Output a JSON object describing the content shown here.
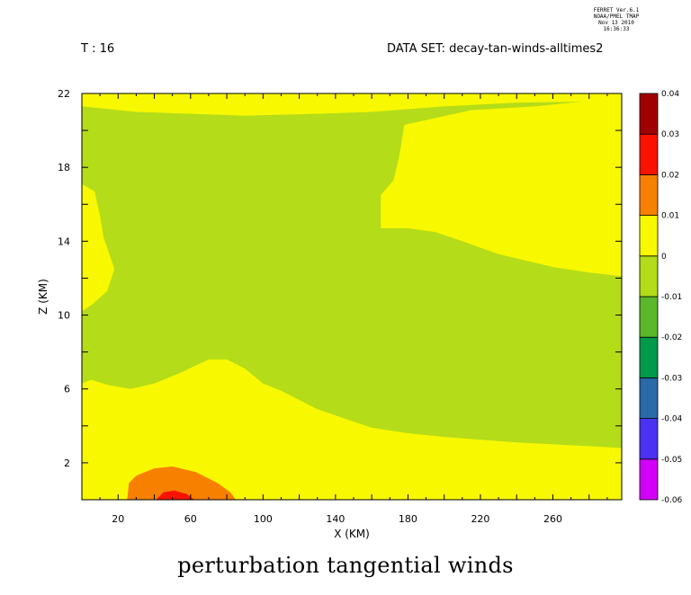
{
  "stamp": {
    "line1": "FERRET  Ver.6.1",
    "line2": "NOAA/PMEL TMAP",
    "line3": "Nov 13 2010 16:36:33"
  },
  "header": {
    "time_label": "T : 16",
    "dataset_label": "DATA SET: decay-tan-winds-alltimes2"
  },
  "chart_data": {
    "type": "heatmap",
    "title": "perturbation tangential winds",
    "xlabel": "X (KM)",
    "ylabel": "Z (KM)",
    "xlim": [
      0,
      298
    ],
    "ylim": [
      0,
      22
    ],
    "x_ticks": [
      20,
      60,
      100,
      140,
      180,
      220,
      260
    ],
    "y_ticks": [
      2,
      6,
      10,
      14,
      18,
      22
    ],
    "grid": false,
    "colorbar": {
      "levels": [
        -0.06,
        -0.05,
        -0.04,
        -0.03,
        -0.02,
        -0.01,
        0,
        0.01,
        0.02,
        0.03,
        0.04
      ],
      "level_labels": [
        "-0.06",
        "-0.05",
        "-0.04",
        "-0.03",
        "-0.02",
        "-0.01",
        "0",
        "0.01",
        "0.02",
        "0.03",
        "0.04"
      ],
      "colors": [
        "#d200f8",
        "#4a32f0",
        "#2a6aa8",
        "#009a4a",
        "#5ab82a",
        "#b4dc18",
        "#f8f800",
        "#f88000",
        "#f81200",
        "#a00000"
      ]
    },
    "regions": [
      {
        "name": "0 to 0.01 (lower layer)",
        "value_range": [
          0,
          0.01
        ],
        "color": "#f8f800",
        "outline": [
          [
            0,
            0
          ],
          [
            298,
            0
          ],
          [
            298,
            2.8
          ],
          [
            280,
            2.9
          ],
          [
            240,
            3.1
          ],
          [
            200,
            3.4
          ],
          [
            180,
            3.6
          ],
          [
            160,
            3.9
          ],
          [
            130,
            4.9
          ],
          [
            110,
            5.9
          ],
          [
            100,
            6.3
          ],
          [
            90,
            7.1
          ],
          [
            80,
            7.6
          ],
          [
            70,
            7.6
          ],
          [
            55,
            6.9
          ],
          [
            40,
            6.3
          ],
          [
            27,
            6.0
          ],
          [
            15,
            6.2
          ],
          [
            5,
            6.5
          ],
          [
            0,
            6.3
          ]
        ]
      },
      {
        "name": "0 to 0.01 (upper right)",
        "value_range": [
          0,
          0.01
        ],
        "color": "#f8f800",
        "outline": [
          [
            165,
            14.7
          ],
          [
            165,
            16.5
          ],
          [
            172,
            17.3
          ],
          [
            175,
            18.5
          ],
          [
            178,
            20.3
          ],
          [
            215,
            21.1
          ],
          [
            250,
            21.3
          ],
          [
            280,
            21.6
          ],
          [
            298,
            21.6
          ],
          [
            298,
            12.1
          ],
          [
            280,
            12.3
          ],
          [
            260,
            12.6
          ],
          [
            230,
            13.3
          ],
          [
            210,
            14.0
          ],
          [
            195,
            14.5
          ],
          [
            180,
            14.7
          ]
        ]
      },
      {
        "name": "0 to 0.01 (top strip)",
        "value_range": [
          0,
          0.01
        ],
        "color": "#f8f800",
        "outline": [
          [
            0,
            21.3
          ],
          [
            30,
            21.0
          ],
          [
            60,
            20.9
          ],
          [
            90,
            20.8
          ],
          [
            130,
            20.9
          ],
          [
            160,
            21.0
          ],
          [
            200,
            21.3
          ],
          [
            240,
            21.5
          ],
          [
            298,
            21.6
          ],
          [
            298,
            22.2
          ],
          [
            0,
            22.2
          ]
        ]
      },
      {
        "name": "0 to 0.01 (left edge)",
        "value_range": [
          0,
          0.01
        ],
        "color": "#f8f800",
        "outline": [
          [
            0,
            10.2
          ],
          [
            6,
            10.6
          ],
          [
            14,
            11.3
          ],
          [
            18,
            12.5
          ],
          [
            12,
            14.2
          ],
          [
            10,
            15.4
          ],
          [
            7,
            16.7
          ],
          [
            0,
            17.1
          ]
        ]
      },
      {
        "name": "0.01 to 0.02",
        "value_range": [
          0.01,
          0.02
        ],
        "color": "#f88000",
        "outline": [
          [
            25,
            0
          ],
          [
            85,
            0
          ],
          [
            82,
            0.4
          ],
          [
            75,
            0.9
          ],
          [
            63,
            1.5
          ],
          [
            50,
            1.8
          ],
          [
            40,
            1.7
          ],
          [
            30,
            1.3
          ],
          [
            26,
            0.9
          ]
        ]
      },
      {
        "name": "0.02 to 0.03",
        "value_range": [
          0.02,
          0.03
        ],
        "color": "#f81200",
        "outline": [
          [
            41,
            0
          ],
          [
            62,
            0
          ],
          [
            58,
            0.3
          ],
          [
            51,
            0.5
          ],
          [
            45,
            0.4
          ]
        ]
      }
    ],
    "background_range": {
      "value_range": [
        -0.01,
        0
      ],
      "color": "#b4dc18"
    }
  }
}
